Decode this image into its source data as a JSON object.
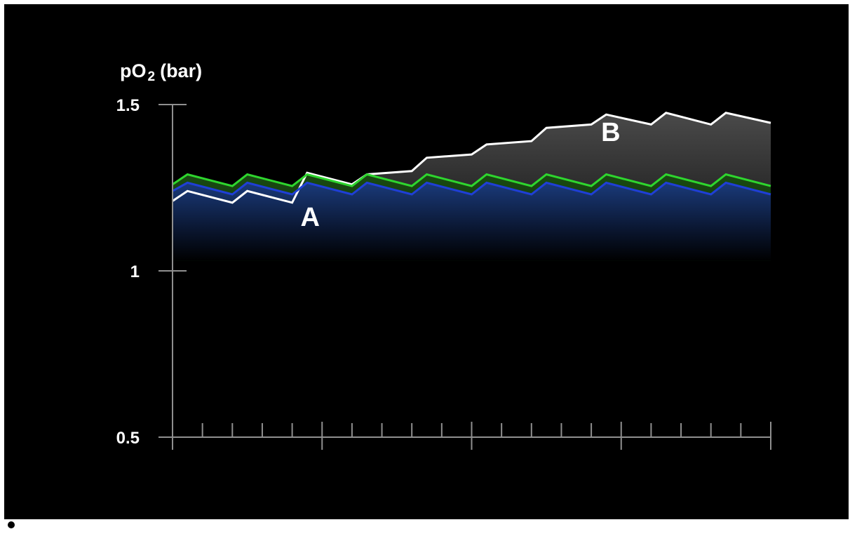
{
  "chart_data": {
    "type": "line",
    "ylabel": "pO",
    "ylabel_sub": "2",
    "ylabel_unit": "(bar)",
    "yticks": [
      "1.5",
      "1",
      "0.5"
    ],
    "ytick_values": [
      1.5,
      1.0,
      0.5
    ],
    "ylim": [
      0.5,
      1.5
    ],
    "xlim": [
      0,
      40
    ],
    "x_major_ticks": [
      0,
      10,
      20,
      30,
      40
    ],
    "x_minor_tick_step": 2,
    "grid": false,
    "annotations": [
      {
        "text": "A",
        "x": 9.2,
        "y": 1.135
      },
      {
        "text": "B",
        "x": 29.3,
        "y": 1.39
      }
    ],
    "series": [
      {
        "color": "#ffffff",
        "x": [
          0,
          1,
          4,
          5,
          8,
          9,
          12,
          13,
          16,
          17,
          20,
          21,
          24,
          25,
          28,
          29,
          32,
          33,
          36,
          37,
          40
        ],
        "y": [
          1.21,
          1.24,
          1.205,
          1.24,
          1.205,
          1.295,
          1.26,
          1.29,
          1.3,
          1.34,
          1.35,
          1.38,
          1.39,
          1.43,
          1.44,
          1.47,
          1.44,
          1.475,
          1.44,
          1.475,
          1.445
        ]
      },
      {
        "color": "#2ed62e",
        "x": [
          0,
          1,
          4,
          5,
          8,
          9,
          12,
          13,
          16,
          17,
          20,
          21,
          24,
          25,
          28,
          29,
          32,
          33,
          36,
          37,
          40
        ],
        "y": [
          1.26,
          1.29,
          1.255,
          1.29,
          1.255,
          1.29,
          1.255,
          1.29,
          1.255,
          1.29,
          1.255,
          1.29,
          1.255,
          1.29,
          1.255,
          1.29,
          1.255,
          1.29,
          1.255,
          1.29,
          1.255
        ]
      },
      {
        "color": "#1f3fd6",
        "x": [
          0,
          1,
          4,
          5,
          8,
          9,
          12,
          13,
          16,
          17,
          20,
          21,
          24,
          25,
          28,
          29,
          32,
          33,
          36,
          37,
          40
        ],
        "y": [
          1.24,
          1.265,
          1.23,
          1.265,
          1.23,
          1.265,
          1.23,
          1.265,
          1.23,
          1.265,
          1.23,
          1.265,
          1.23,
          1.265,
          1.23,
          1.265,
          1.23,
          1.265,
          1.23,
          1.265,
          1.23
        ]
      }
    ]
  }
}
